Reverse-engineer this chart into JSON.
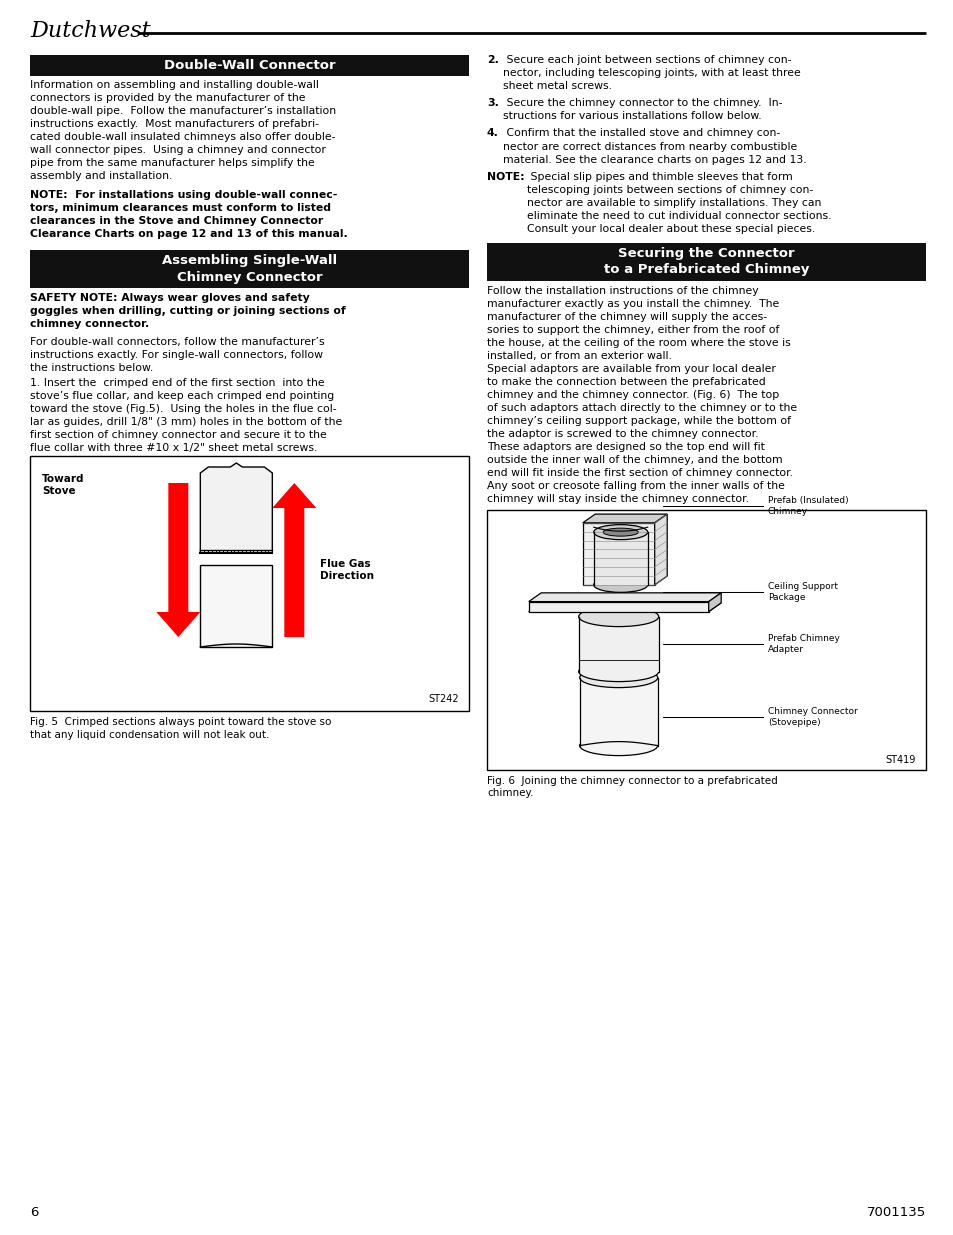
{
  "page_width": 9.54,
  "page_height": 12.35,
  "dpi": 100,
  "bg_color": "#ffffff",
  "title_italic": "Dutchwest",
  "page_number": "6",
  "doc_number": "7001135",
  "header_bar_color": "#111111",
  "header_text_color": "#ffffff",
  "section1_title": "Double-Wall Connector",
  "section2_title": "Assembling Single-Wall\nChimney Connector",
  "section3_title": "Securing the Connector\nto a Prefabricated Chimney",
  "fig5_label_toward_stove": "Toward\nStove",
  "fig5_label_flue_gas": "Flue Gas\nDirection",
  "fig5_code": "ST242",
  "fig6_code": "ST419",
  "fig6_labels": [
    "Prefab (Insulated)\nChimney",
    "Ceiling Support\nPackage",
    "Prefab Chimney\nAdapter",
    "Chimney Connector\n(Stovepipe)"
  ]
}
